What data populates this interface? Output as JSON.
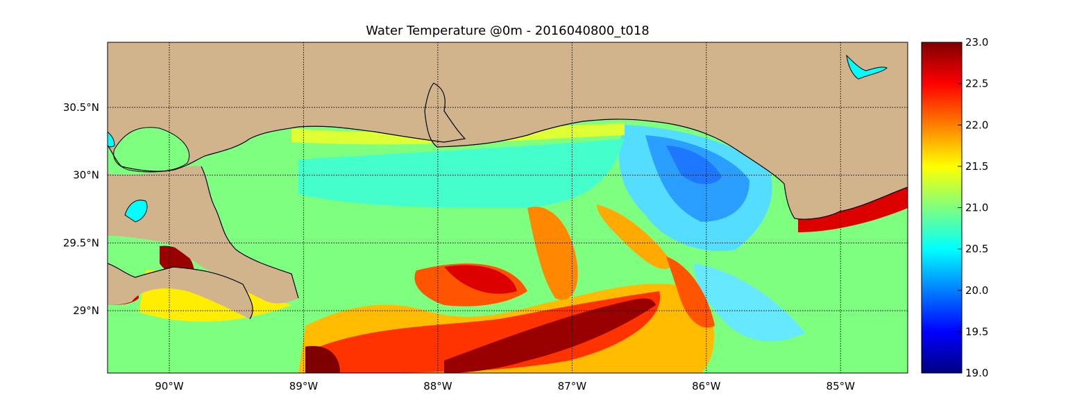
{
  "title": "Water Temperature @0m - 2016040800_t018",
  "map": {
    "lon_range": [
      -90.46,
      -84.5
    ],
    "lat_range": [
      28.54,
      30.98
    ],
    "land_color": "#d2b48c",
    "coast_color": "#000000",
    "grid_style": "dotted",
    "longitude_ticks": [
      {
        "value": -90,
        "label": "90°W"
      },
      {
        "value": -89,
        "label": "89°W"
      },
      {
        "value": -88,
        "label": "88°W"
      },
      {
        "value": -87,
        "label": "87°W"
      },
      {
        "value": -86,
        "label": "86°W"
      },
      {
        "value": -85,
        "label": "85°W"
      }
    ],
    "latitude_ticks": [
      {
        "value": 30.5,
        "label": "30.5°N"
      },
      {
        "value": 30.0,
        "label": "30°N"
      },
      {
        "value": 29.5,
        "label": "29.5°N"
      },
      {
        "value": 29.0,
        "label": "29°N"
      }
    ]
  },
  "colorbar": {
    "min": 19.0,
    "max": 23.0,
    "colormap": "jet",
    "colors": [
      "#00007f",
      "#0000ff",
      "#007fff",
      "#00ffff",
      "#7fff7f",
      "#ffff00",
      "#ff7f00",
      "#ff0000",
      "#7f0000"
    ],
    "ticks": [
      {
        "value": 23.0,
        "label": "23.0"
      },
      {
        "value": 22.5,
        "label": "22.5"
      },
      {
        "value": 22.0,
        "label": "22.0"
      },
      {
        "value": 21.5,
        "label": "21.5"
      },
      {
        "value": 21.0,
        "label": "21.0"
      },
      {
        "value": 20.5,
        "label": "20.5"
      },
      {
        "value": 20.0,
        "label": "20.0"
      },
      {
        "value": 19.5,
        "label": "19.5"
      },
      {
        "value": 19.0,
        "label": "19.0"
      }
    ]
  }
}
